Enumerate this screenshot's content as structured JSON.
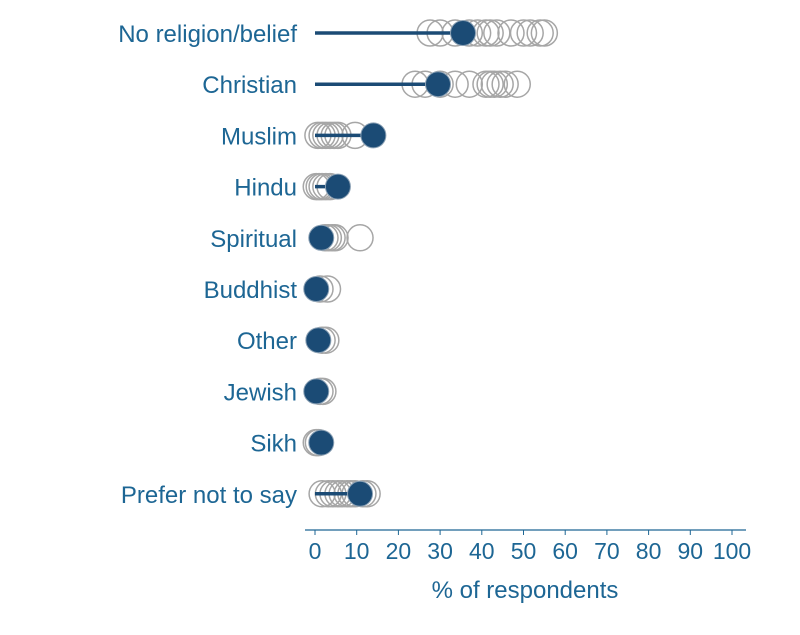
{
  "chart_data": {
    "type": "scatter",
    "title": "",
    "xlabel": "% of respondents",
    "ylabel": "",
    "xlim": [
      0,
      100
    ],
    "xticks": [
      0,
      10,
      20,
      30,
      40,
      50,
      60,
      70,
      80,
      90,
      100
    ],
    "grid": false,
    "colors": {
      "highlight": "#1b4b75",
      "other": "#a6a6a6",
      "text": "#1d6694"
    },
    "categories": [
      "No religion/belief",
      "Christian",
      "Muslim",
      "Hindu",
      "Spiritual",
      "Buddhist",
      "Other",
      "Jewish",
      "Sikh",
      "Prefer not to say"
    ],
    "highlight_values": [
      35.5,
      29.5,
      14,
      5.5,
      1.5,
      0.3,
      0.8,
      0.3,
      1.5,
      10.8
    ],
    "other_values": [
      [
        27.6,
        30,
        33.6,
        37,
        39,
        41,
        42,
        43.6,
        47,
        50,
        51.6,
        54,
        55
      ],
      [
        24,
        26.4,
        30,
        33.6,
        37,
        41,
        42,
        43,
        44.4,
        45.6,
        48.5
      ],
      [
        0.7,
        1.7,
        2.6,
        3.6,
        4.6,
        5.5,
        9.6
      ],
      [
        0.3,
        1,
        1.7,
        2.6,
        3.6
      ],
      [
        2.4,
        3.2,
        4.1,
        4.8,
        10.8
      ],
      [
        1.2,
        3
      ],
      [
        1.7,
        2.6
      ],
      [
        1.2,
        1.9
      ],
      [
        0.3,
        0.8
      ],
      [
        1.7,
        3.2,
        4.3,
        5.5,
        6.5,
        7.7,
        8.6,
        9.6,
        11.5,
        12.5
      ]
    ]
  }
}
